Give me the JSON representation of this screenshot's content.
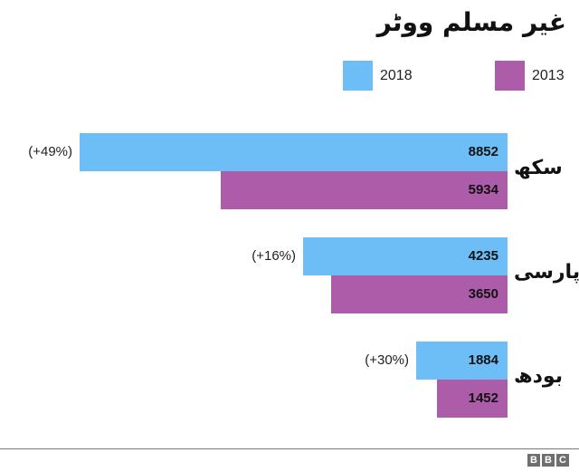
{
  "chart_data": {
    "type": "bar",
    "orientation": "horizontal",
    "title": "غیر مسلم ووٹر",
    "categories": [
      "سکھ",
      "پارسی",
      "بودھ"
    ],
    "series": [
      {
        "name": "2018",
        "color": "#6dbef6",
        "values": [
          8852,
          4235,
          1884
        ]
      },
      {
        "name": "2013",
        "color": "#ad5ca9",
        "values": [
          5934,
          3650,
          1452
        ]
      }
    ],
    "annotations": [
      "(+49%)",
      "(+16%)",
      "(+30%)"
    ],
    "legend_position": "top-right",
    "grid": false,
    "xlabel": "",
    "ylabel": ""
  },
  "title": "غیر مسلم ووٹر",
  "legend": [
    {
      "label": "2018",
      "color": "#6dbef6"
    },
    {
      "label": "2013",
      "color": "#ad5ca9"
    }
  ],
  "groups": [
    {
      "label": "سکھ",
      "change": "(+49%)",
      "v2018": "8852",
      "v2013": "5934"
    },
    {
      "label": "پارسی",
      "change": "(+16%)",
      "v2018": "4235",
      "v2013": "3650"
    },
    {
      "label": "بودھ",
      "change": "(+30%)",
      "v2018": "1884",
      "v2013": "1452"
    }
  ],
  "footer": {
    "logo": [
      "B",
      "B",
      "C"
    ]
  }
}
